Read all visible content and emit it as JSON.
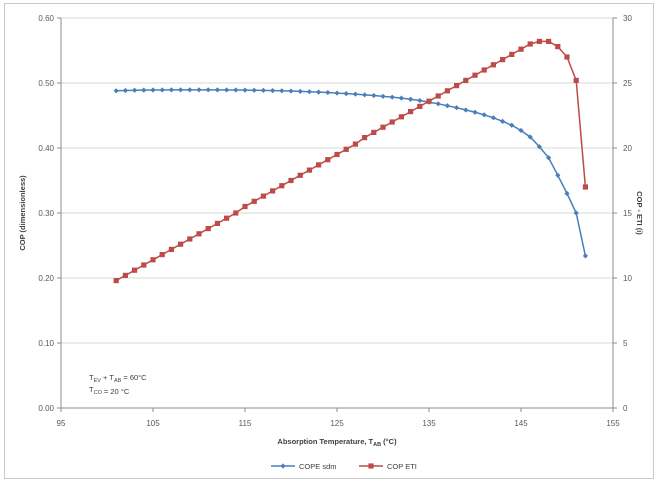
{
  "chart_data": {
    "type": "line",
    "xlabel": "Absorption Temperature, T",
    "xlabel_sub": "AB",
    "xlabel_unit": " (°C)",
    "ylabel": "COP (dimensionless)",
    "y2label": "COP - ETI (i)",
    "xlim": [
      95,
      155
    ],
    "ylim": [
      0,
      0.6
    ],
    "y2lim": [
      0,
      30
    ],
    "x_ticks": [
      95,
      105,
      115,
      125,
      135,
      145,
      155
    ],
    "x_tick_labels": [
      "95",
      "105",
      "115",
      "125",
      "135",
      "145",
      "155"
    ],
    "y_ticks": [
      0,
      0.1,
      0.2,
      0.3,
      0.4,
      0.5,
      0.6
    ],
    "y_tick_labels": [
      "0.00",
      "0.10",
      "0.20",
      "0.30",
      "0.40",
      "0.50",
      "0.60"
    ],
    "y2_ticks": [
      0,
      5,
      10,
      15,
      20,
      25,
      30
    ],
    "y2_tick_labels": [
      "0",
      "5",
      "10",
      "15",
      "20",
      "25",
      "30"
    ],
    "grid": "horizontal",
    "legend_position": "bottom",
    "annotation_lines": [
      {
        "T": "T",
        "sub1": "EV",
        "mid": " + T",
        "sub2": "AB",
        "rest": " = 60°C"
      },
      {
        "T": "T",
        "sub1": "CO",
        "mid": "",
        "sub2": "",
        "rest": " = 20 °C"
      }
    ],
    "series": [
      {
        "name": "COPE sdm",
        "color": "#4a7ebb",
        "marker": "diamond",
        "axis": "left",
        "x": [
          101,
          102,
          103,
          104,
          105,
          106,
          107,
          108,
          109,
          110,
          111,
          112,
          113,
          114,
          115,
          116,
          117,
          118,
          119,
          120,
          121,
          122,
          123,
          124,
          125,
          126,
          127,
          128,
          129,
          130,
          131,
          132,
          133,
          134,
          135,
          136,
          137,
          138,
          139,
          140,
          141,
          142,
          143,
          144,
          145,
          146,
          147,
          148,
          149,
          150,
          151,
          152
        ],
        "y": [
          0.488,
          0.4885,
          0.4888,
          0.489,
          0.4892,
          0.4893,
          0.4894,
          0.4895,
          0.4895,
          0.4895,
          0.4895,
          0.4894,
          0.4893,
          0.4892,
          0.489,
          0.4888,
          0.4886,
          0.4883,
          0.488,
          0.4876,
          0.4871,
          0.4866,
          0.486,
          0.4853,
          0.4845,
          0.4837,
          0.4828,
          0.4818,
          0.4807,
          0.4795,
          0.4782,
          0.4767,
          0.475,
          0.473,
          0.4705,
          0.468,
          0.465,
          0.462,
          0.4585,
          0.455,
          0.451,
          0.4465,
          0.441,
          0.435,
          0.427,
          0.417,
          0.402,
          0.385,
          0.358,
          0.33,
          0.3,
          0.234
        ]
      },
      {
        "name": "COP ETI",
        "color": "#be4b48",
        "marker": "square",
        "axis": "right",
        "x": [
          101,
          102,
          103,
          104,
          105,
          106,
          107,
          108,
          109,
          110,
          111,
          112,
          113,
          114,
          115,
          116,
          117,
          118,
          119,
          120,
          121,
          122,
          123,
          124,
          125,
          126,
          127,
          128,
          129,
          130,
          131,
          132,
          133,
          134,
          135,
          136,
          137,
          138,
          139,
          140,
          141,
          142,
          143,
          144,
          145,
          146,
          147,
          148,
          149,
          150,
          151,
          152
        ],
        "y": [
          9.8,
          10.2,
          10.6,
          11.0,
          11.4,
          11.8,
          12.2,
          12.6,
          13.0,
          13.4,
          13.8,
          14.2,
          14.6,
          15.0,
          15.5,
          15.9,
          16.3,
          16.7,
          17.1,
          17.5,
          17.9,
          18.3,
          18.7,
          19.1,
          19.5,
          19.9,
          20.3,
          20.8,
          21.2,
          21.6,
          22.0,
          22.4,
          22.8,
          23.2,
          23.6,
          24.0,
          24.4,
          24.8,
          25.2,
          25.6,
          26.0,
          26.4,
          26.8,
          27.2,
          27.6,
          28.0,
          28.2,
          28.2,
          27.8,
          27.0,
          25.2,
          17.0
        ]
      }
    ]
  }
}
